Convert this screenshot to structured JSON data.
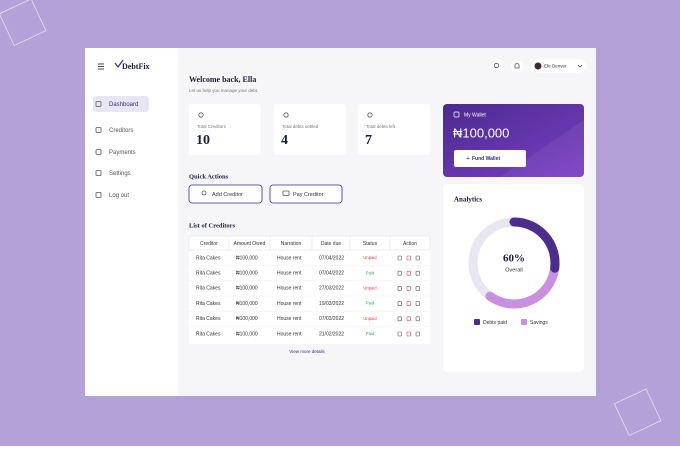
{
  "brand": "DebtFix",
  "sidebar": {
    "items": [
      "Dashboard",
      "Creditors",
      "Payments",
      "Settings",
      "Log out"
    ]
  },
  "topbar": {
    "user": "Efe Denver"
  },
  "header": {
    "title": "Welcome back, Ella",
    "subtitle": "Let us help you manage your debt."
  },
  "stats": [
    {
      "label": "Total Creditors",
      "value": "10"
    },
    {
      "label": "Total debts settled",
      "value": "4"
    },
    {
      "label": "Total debts left",
      "value": "7"
    }
  ],
  "wallet": {
    "title": "My Wallet",
    "balance": "₦100,000",
    "button": "Fund Wallet"
  },
  "quick_actions": {
    "title": "Quick Actions",
    "buttons": [
      "Add Creditor",
      "Pay Creditor"
    ]
  },
  "table": {
    "title": "List of Creditors",
    "columns": [
      "Creditor",
      "Amount Owed",
      "Narration",
      "Date due",
      "Status",
      "Action"
    ],
    "rows": [
      [
        "Rita Cakes",
        "₦100,000",
        "House rent",
        "07/04/2022",
        "Unpaid"
      ],
      [
        "Rita Cakes",
        "₦100,000",
        "House rent",
        "07/04/2022",
        "Paid"
      ],
      [
        "Rita Cakes",
        "₦100,000",
        "House rent",
        "27/03/2022",
        "Unpaid"
      ],
      [
        "Rita Cakes",
        "₦100,000",
        "House rent",
        "19/03/2022",
        "Paid"
      ],
      [
        "Rita Cakes",
        "₦100,000",
        "House rent",
        "07/03/2022",
        "Unpaid"
      ],
      [
        "Rita Cakes",
        "₦100,000",
        "House rent",
        "21/02/2022",
        "Paid"
      ]
    ],
    "footer": "View more details"
  },
  "analytics": {
    "title": "Analytics",
    "value": 60,
    "value_label": "60%",
    "caption": "Overall",
    "legend": [
      "Debts paid",
      "Savings"
    ]
  }
}
